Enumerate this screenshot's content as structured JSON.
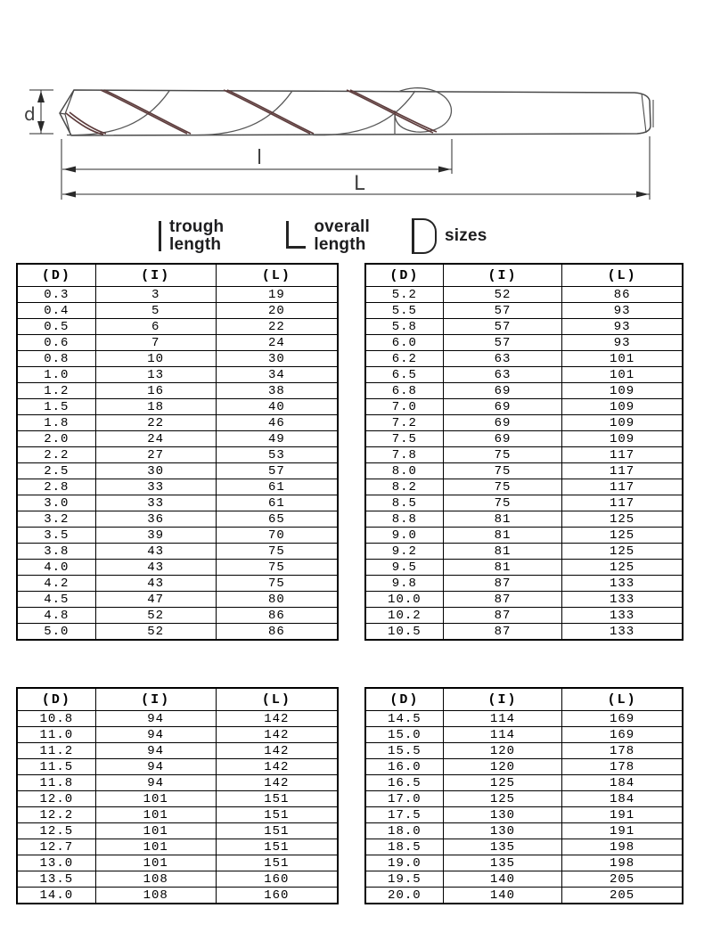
{
  "page": {
    "background": "#ffffff"
  },
  "diagram": {
    "dimension_labels": {
      "d": "d",
      "l": "l",
      "L": "L"
    },
    "line_color": "#4a4a4a",
    "flute_band_color": "#5d3c3c",
    "dimension_line_color": "#2a2a2a"
  },
  "legend": {
    "items": [
      {
        "symbol": "i-bar-symbol",
        "lines": [
          "trough",
          "length"
        ]
      },
      {
        "symbol": "l-shape-symbol",
        "lines": [
          "overall",
          "length"
        ]
      },
      {
        "symbol": "d-shape-symbol",
        "lines": [
          "sizes",
          ""
        ]
      }
    ]
  },
  "tables": {
    "headers": [
      "(D)",
      "(I)",
      "(L)"
    ],
    "t1": {
      "rows": [
        [
          "0.3",
          "3",
          "19"
        ],
        [
          "0.4",
          "5",
          "20"
        ],
        [
          "0.5",
          "6",
          "22"
        ],
        [
          "0.6",
          "7",
          "24"
        ],
        [
          "0.8",
          "10",
          "30"
        ],
        [
          "1.0",
          "13",
          "34"
        ],
        [
          "1.2",
          "16",
          "38"
        ],
        [
          "1.5",
          "18",
          "40"
        ],
        [
          "1.8",
          "22",
          "46"
        ],
        [
          "2.0",
          "24",
          "49"
        ],
        [
          "2.2",
          "27",
          "53"
        ],
        [
          "2.5",
          "30",
          "57"
        ],
        [
          "2.8",
          "33",
          "61"
        ],
        [
          "3.0",
          "33",
          "61"
        ],
        [
          "3.2",
          "36",
          "65"
        ],
        [
          "3.5",
          "39",
          "70"
        ],
        [
          "3.8",
          "43",
          "75"
        ],
        [
          "4.0",
          "43",
          "75"
        ],
        [
          "4.2",
          "43",
          "75"
        ],
        [
          "4.5",
          "47",
          "80"
        ],
        [
          "4.8",
          "52",
          "86"
        ],
        [
          "5.0",
          "52",
          "86"
        ]
      ]
    },
    "t2": {
      "rows": [
        [
          "5.2",
          "52",
          "86"
        ],
        [
          "5.5",
          "57",
          "93"
        ],
        [
          "5.8",
          "57",
          "93"
        ],
        [
          "6.0",
          "57",
          "93"
        ],
        [
          "6.2",
          "63",
          "101"
        ],
        [
          "6.5",
          "63",
          "101"
        ],
        [
          "6.8",
          "69",
          "109"
        ],
        [
          "7.0",
          "69",
          "109"
        ],
        [
          "7.2",
          "69",
          "109"
        ],
        [
          "7.5",
          "69",
          "109"
        ],
        [
          "7.8",
          "75",
          "117"
        ],
        [
          "8.0",
          "75",
          "117"
        ],
        [
          "8.2",
          "75",
          "117"
        ],
        [
          "8.5",
          "75",
          "117"
        ],
        [
          "8.8",
          "81",
          "125"
        ],
        [
          "9.0",
          "81",
          "125"
        ],
        [
          "9.2",
          "81",
          "125"
        ],
        [
          "9.5",
          "81",
          "125"
        ],
        [
          "9.8",
          "87",
          "133"
        ],
        [
          "10.0",
          "87",
          "133"
        ],
        [
          "10.2",
          "87",
          "133"
        ],
        [
          "10.5",
          "87",
          "133"
        ]
      ]
    },
    "t3": {
      "rows": [
        [
          "10.8",
          "94",
          "142"
        ],
        [
          "11.0",
          "94",
          "142"
        ],
        [
          "11.2",
          "94",
          "142"
        ],
        [
          "11.5",
          "94",
          "142"
        ],
        [
          "11.8",
          "94",
          "142"
        ],
        [
          "12.0",
          "101",
          "151"
        ],
        [
          "12.2",
          "101",
          "151"
        ],
        [
          "12.5",
          "101",
          "151"
        ],
        [
          "12.7",
          "101",
          "151"
        ],
        [
          "13.0",
          "101",
          "151"
        ],
        [
          "13.5",
          "108",
          "160"
        ],
        [
          "14.0",
          "108",
          "160"
        ]
      ]
    },
    "t4": {
      "rows": [
        [
          "14.5",
          "114",
          "169"
        ],
        [
          "15.0",
          "114",
          "169"
        ],
        [
          "15.5",
          "120",
          "178"
        ],
        [
          "16.0",
          "120",
          "178"
        ],
        [
          "16.5",
          "125",
          "184"
        ],
        [
          "17.0",
          "125",
          "184"
        ],
        [
          "17.5",
          "130",
          "191"
        ],
        [
          "18.0",
          "130",
          "191"
        ],
        [
          "18.5",
          "135",
          "198"
        ],
        [
          "19.0",
          "135",
          "198"
        ],
        [
          "19.5",
          "140",
          "205"
        ],
        [
          "20.0",
          "140",
          "205"
        ]
      ]
    }
  }
}
